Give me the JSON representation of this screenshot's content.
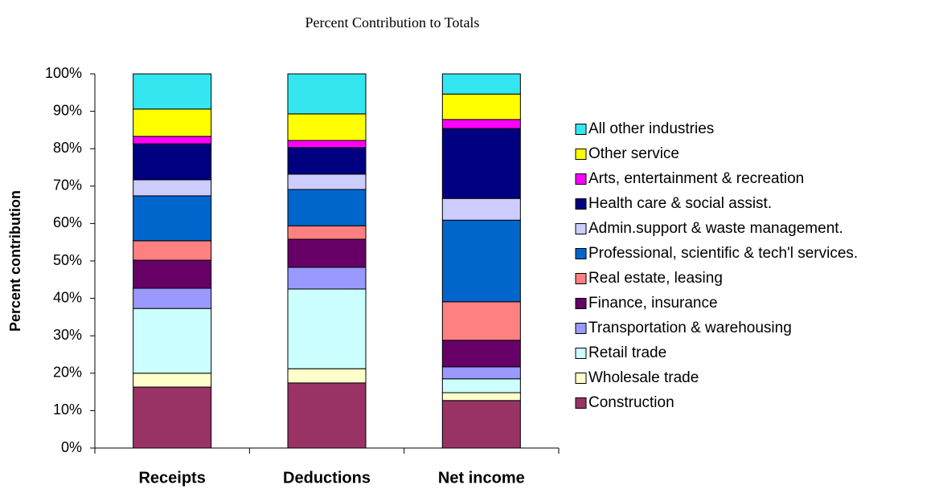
{
  "chart_data": {
    "type": "stacked_bar",
    "title": "Percent Contribution to Totals",
    "y_label": "Percent contribution",
    "categories": [
      "Receipts",
      "Deductions",
      "Net income"
    ],
    "ylim": [
      0,
      100
    ],
    "yticks": [
      {
        "value": 0,
        "label": "0%"
      },
      {
        "value": 10,
        "label": "10%"
      },
      {
        "value": 20,
        "label": "20%"
      },
      {
        "value": 30,
        "label": "30%"
      },
      {
        "value": 40,
        "label": "40%"
      },
      {
        "value": 50,
        "label": "50%"
      },
      {
        "value": 60,
        "label": "60%"
      },
      {
        "value": 70,
        "label": "70%"
      },
      {
        "value": 80,
        "label": "80%"
      },
      {
        "value": 90,
        "label": "90%"
      },
      {
        "value": 100,
        "label": "100%"
      }
    ],
    "legend_position": "right",
    "series": [
      {
        "name": "Construction",
        "color": "#993366",
        "values": [
          16.3,
          17.4,
          12.7
        ]
      },
      {
        "name": "Wholesale trade",
        "color": "#FFFFCC",
        "values": [
          3.7,
          3.8,
          2.1
        ]
      },
      {
        "name": "Retail trade",
        "color": "#CCFFFF",
        "values": [
          17.3,
          21.3,
          3.7
        ]
      },
      {
        "name": "Transportation & warehousing",
        "color": "#9999FF",
        "values": [
          5.4,
          5.8,
          3.2
        ]
      },
      {
        "name": "Finance, insurance",
        "color": "#660066",
        "values": [
          7.5,
          7.5,
          7.1
        ]
      },
      {
        "name": "Real estate, leasing",
        "color": "#FF8080",
        "values": [
          5.2,
          3.6,
          10.3
        ]
      },
      {
        "name": "Professional, scientific & tech'l services.",
        "color": "#0066CC",
        "values": [
          12.0,
          9.7,
          21.8
        ]
      },
      {
        "name": "Admin.support & waste management.",
        "color": "#CCCCFF",
        "values": [
          4.3,
          4.1,
          5.8
        ]
      },
      {
        "name": "Health care & social assist.",
        "color": "#000080",
        "values": [
          9.6,
          7.1,
          18.7
        ]
      },
      {
        "name": "Arts, entertainment & recreation",
        "color": "#FF00FF",
        "values": [
          2.0,
          1.9,
          2.4
        ]
      },
      {
        "name": "Other service",
        "color": "#FFFF00",
        "values": [
          7.3,
          7.1,
          6.8
        ]
      },
      {
        "name": "All other industries",
        "color": "#33E6F0",
        "values": [
          9.4,
          10.7,
          5.4
        ]
      }
    ]
  }
}
